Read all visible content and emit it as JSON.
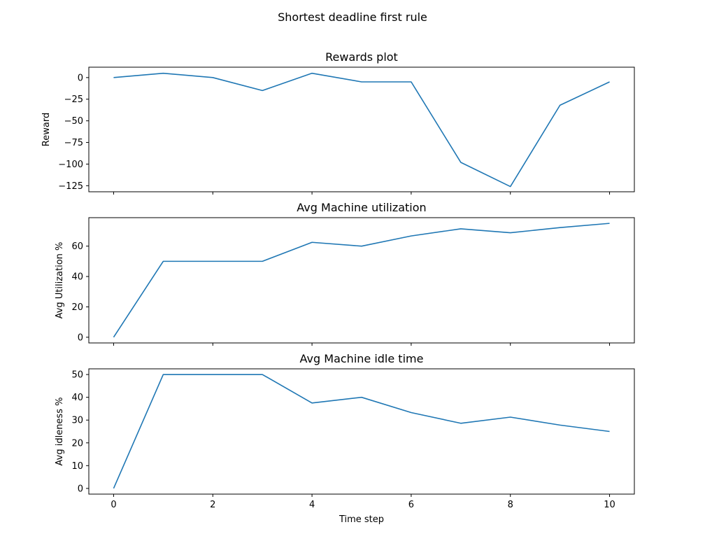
{
  "figure": {
    "suptitle": "Shortest deadline first rule",
    "line_color": "#1f77b4"
  },
  "chart_data": [
    {
      "type": "line",
      "title": "Rewards plot",
      "xlabel": "",
      "ylabel": "Reward",
      "x": [
        0,
        1,
        2,
        3,
        4,
        5,
        6,
        7,
        8,
        9,
        10
      ],
      "y": [
        0,
        5,
        0,
        -15,
        5,
        -5,
        -5,
        -98,
        -126,
        -32,
        -5
      ],
      "xlim": [
        -0.5,
        10.5
      ],
      "ylim": [
        -132,
        12
      ],
      "xticks": [
        0,
        2,
        4,
        6,
        8,
        10
      ],
      "xtick_labels_shown": false,
      "yticks": [
        0,
        -25,
        -50,
        -75,
        -100,
        -125
      ],
      "ytick_labels": [
        "0",
        "−25",
        "−50",
        "−75",
        "−100",
        "−125"
      ],
      "grid": false
    },
    {
      "type": "line",
      "title": "Avg Machine utilization",
      "xlabel": "",
      "ylabel": "Avg Utilization %",
      "x": [
        0,
        1,
        2,
        3,
        4,
        5,
        6,
        7,
        8,
        9,
        10
      ],
      "y": [
        0,
        50,
        50,
        50,
        62.5,
        60,
        66.7,
        71.4,
        68.8,
        72.2,
        75
      ],
      "xlim": [
        -0.5,
        10.5
      ],
      "ylim": [
        -3.75,
        78.75
      ],
      "xticks": [
        0,
        2,
        4,
        6,
        8,
        10
      ],
      "xtick_labels_shown": false,
      "yticks": [
        0,
        20,
        40,
        60
      ],
      "ytick_labels": [
        "0",
        "20",
        "40",
        "60"
      ],
      "grid": false
    },
    {
      "type": "line",
      "title": "Avg Machine idle time",
      "xlabel": "Time step",
      "ylabel": "Avg idleness %",
      "x": [
        0,
        1,
        2,
        3,
        4,
        5,
        6,
        7,
        8,
        9,
        10
      ],
      "y": [
        0,
        50,
        50,
        50,
        37.5,
        40,
        33.3,
        28.6,
        31.3,
        27.8,
        25
      ],
      "xlim": [
        -0.5,
        10.5
      ],
      "ylim": [
        -2.5,
        52.5
      ],
      "xticks": [
        0,
        2,
        4,
        6,
        8,
        10
      ],
      "xtick_labels_shown": true,
      "xtick_labels": [
        "0",
        "2",
        "4",
        "6",
        "8",
        "10"
      ],
      "yticks": [
        0,
        10,
        20,
        30,
        40,
        50
      ],
      "ytick_labels": [
        "0",
        "10",
        "20",
        "30",
        "40",
        "50"
      ],
      "grid": false
    }
  ]
}
